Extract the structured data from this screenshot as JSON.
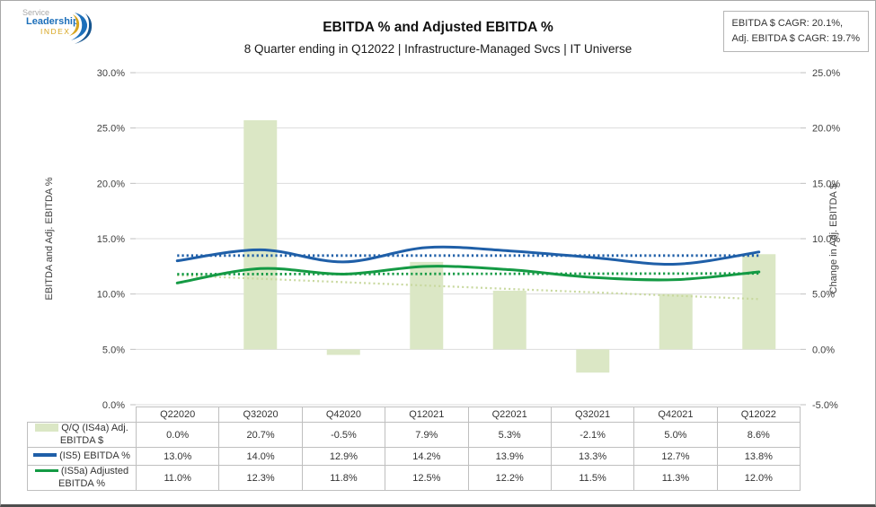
{
  "logo": {
    "line1": "Service",
    "line2": "Leadership",
    "line3": "INDEX"
  },
  "header": {
    "title": "EBITDA % and Adjusted EBITDA %",
    "subtitle": "8 Quarter ending in Q12022 | Infrastructure-Managed Svcs | IT Universe"
  },
  "cagr_box": {
    "line1": "EBITDA $ CAGR: 20.1%,",
    "line2": "Adj. EBITDA $ CAGR: 19.7%"
  },
  "chart_data": {
    "type": "combo",
    "subtype": "bars + smoothed lines + linear trendlines",
    "categories": [
      "Q22020",
      "Q32020",
      "Q42020",
      "Q12021",
      "Q22021",
      "Q32021",
      "Q42021",
      "Q12022"
    ],
    "bar_series": {
      "name": "Q/Q (IS4a) Adj. EBITDA $",
      "axis": "right",
      "color": "#dbe7c5",
      "trend_color": "#c8d89e",
      "values": [
        0.0,
        20.7,
        -0.5,
        7.9,
        5.3,
        -2.1,
        5.0,
        8.6
      ]
    },
    "line_series": [
      {
        "name": "(IS5) EBITDA %",
        "axis": "left",
        "color": "#1f5fa8",
        "values": [
          13.0,
          14.0,
          12.9,
          14.2,
          13.9,
          13.3,
          12.7,
          13.8
        ]
      },
      {
        "name": "(IS5a) Adjusted EBITDA %",
        "axis": "left",
        "color": "#149a44",
        "values": [
          11.0,
          12.3,
          11.8,
          12.5,
          12.2,
          11.5,
          11.3,
          12.0
        ]
      }
    ],
    "left_axis": {
      "title": "EBITDA and Adj. EBITDA %",
      "min": 0,
      "max": 30,
      "step": 5,
      "ticks": [
        "0.0%",
        "5.0%",
        "10.0%",
        "15.0%",
        "20.0%",
        "25.0%",
        "30.0%"
      ]
    },
    "right_axis": {
      "title": "Change in Adj. EBITDA $",
      "min": -5,
      "max": 25,
      "step": 5,
      "ticks": [
        "-5.0%",
        "0.0%",
        "5.0%",
        "10.0%",
        "15.0%",
        "20.0%",
        "25.0%"
      ]
    },
    "grid": true,
    "grid_color": "#dcdcdc",
    "legend_position": "table-left",
    "trendlines": true
  },
  "table": {
    "note": "values are rendered from chart_data; formatted one decimal with % sign"
  }
}
